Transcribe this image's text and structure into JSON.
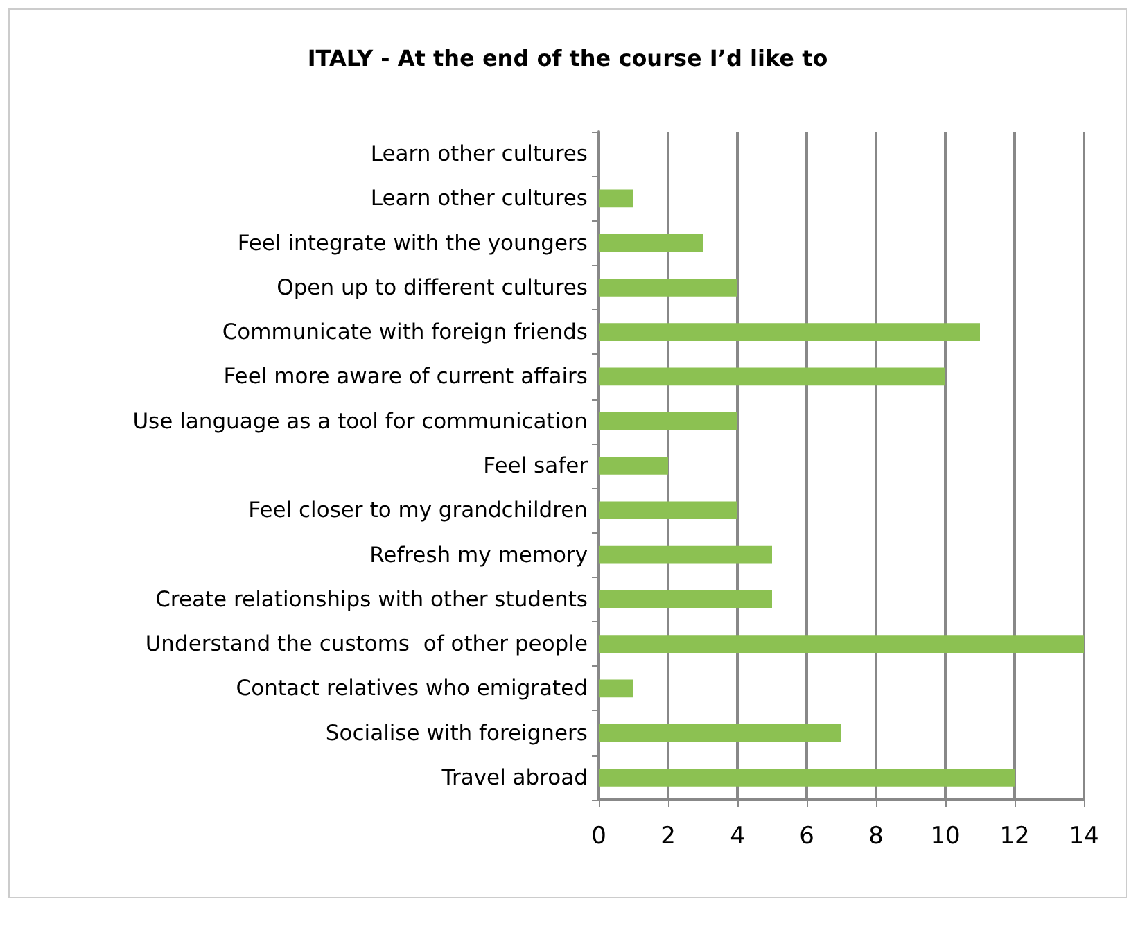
{
  "chart_data": {
    "type": "bar",
    "orientation": "horizontal",
    "title": "ITALY - At the end of the course I’d like to",
    "categories": [
      "Learn other cultures",
      "Learn other cultures",
      "Feel integrate with the youngers",
      "Open up to different cultures",
      "Communicate with foreign friends",
      "Feel more aware of current affairs",
      "Use language as a tool for communication",
      "Feel safer",
      "Feel closer to my grandchildren",
      "Refresh my memory",
      "Create relationships with other students",
      "Understand the customs  of other people",
      "Contact relatives who emigrated",
      "Socialise with foreigners",
      "Travel abroad"
    ],
    "values": [
      0,
      1,
      3,
      4,
      11,
      10,
      4,
      2,
      4,
      5,
      5,
      14,
      1,
      7,
      12
    ],
    "color": "#8cc152",
    "xlim": [
      0,
      14
    ],
    "xticks": [
      0,
      2,
      4,
      6,
      8,
      10,
      12,
      14
    ],
    "grid": "x"
  }
}
